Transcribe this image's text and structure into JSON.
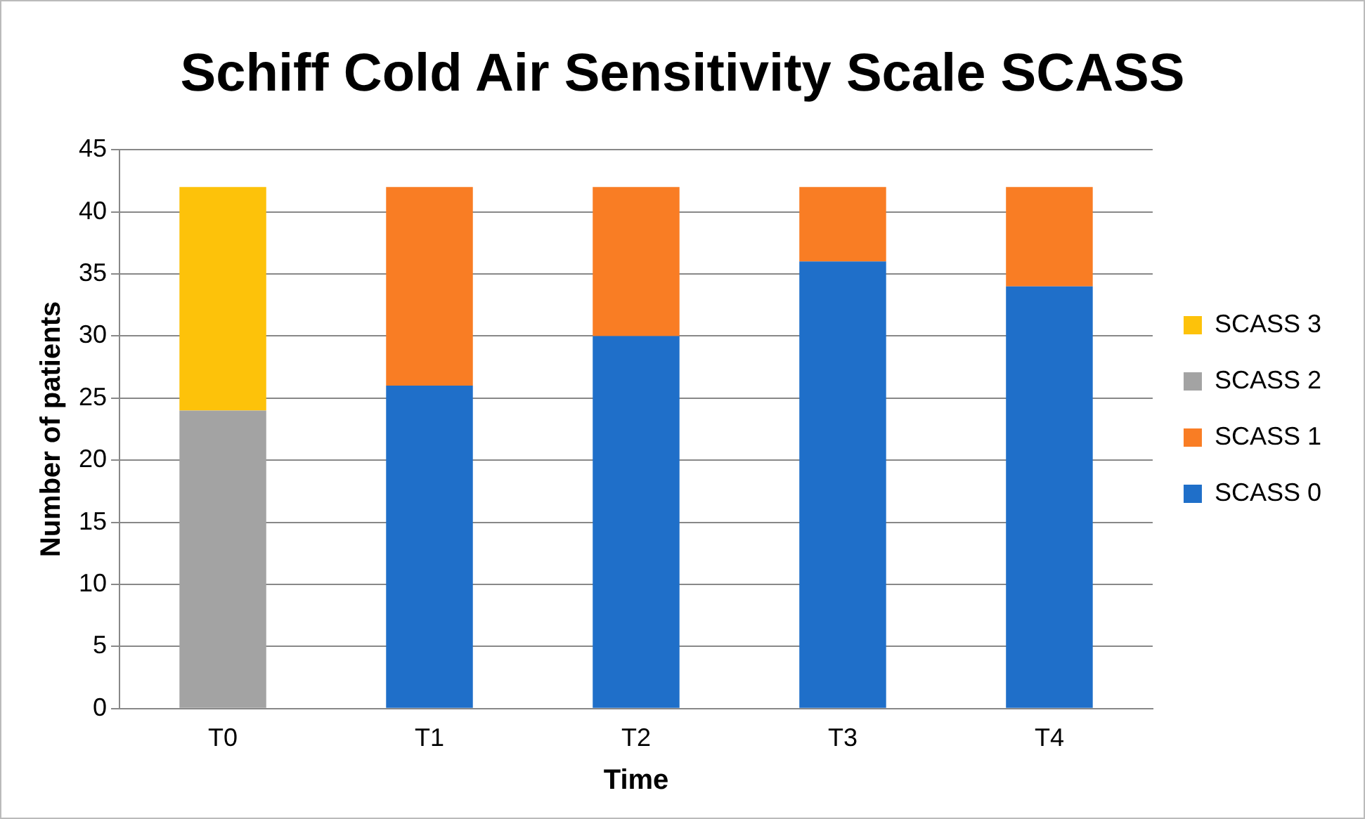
{
  "chart_data": {
    "type": "bar",
    "title": "Schiff Cold Air Sensitivity Scale SCASS",
    "xlabel": "Time",
    "ylabel": "Number of patients",
    "categories": [
      "T0",
      "T1",
      "T2",
      "T3",
      "T4"
    ],
    "series": [
      {
        "name": "SCASS 0",
        "color": "#1f6fc9",
        "values": [
          0,
          26,
          30,
          36,
          34
        ]
      },
      {
        "name": "SCASS 1",
        "color": "#f97d24",
        "values": [
          0,
          16,
          12,
          6,
          8
        ]
      },
      {
        "name": "SCASS 2",
        "color": "#a3a3a3",
        "values": [
          24,
          0,
          0,
          0,
          0
        ]
      },
      {
        "name": "SCASS 3",
        "color": "#fdc20a",
        "values": [
          18,
          0,
          0,
          0,
          0
        ]
      }
    ],
    "stacked": true,
    "ylim": [
      0,
      45
    ],
    "yticks": [
      0,
      5,
      10,
      15,
      20,
      25,
      30,
      35,
      40,
      45
    ],
    "grid": "y",
    "legend": "right"
  }
}
